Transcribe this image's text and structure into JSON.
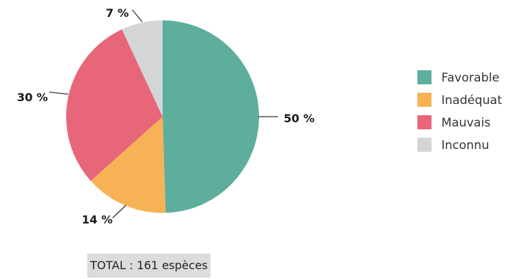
{
  "chart_data": {
    "type": "pie",
    "categories": [
      "Favorable",
      "Inadéquat",
      "Mauvais",
      "Inconnu"
    ],
    "values": [
      50,
      14,
      30,
      7
    ],
    "labels": [
      "50 %",
      "14 %",
      "30 %",
      "7 %"
    ],
    "colors": [
      "#5eae9e",
      "#f8b256",
      "#e8667a",
      "#d3d5d7"
    ],
    "legend_position": "right"
  },
  "footer": {
    "total_text": "TOTAL : 161 espèces"
  }
}
